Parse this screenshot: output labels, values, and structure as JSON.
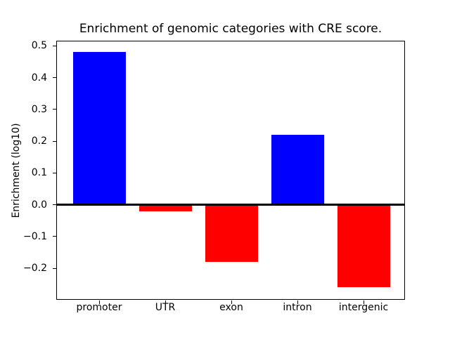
{
  "chart_data": {
    "type": "bar",
    "title": "Enrichment of genomic categories with CRE score.",
    "ylabel": "Enrichment (log10)",
    "categories": [
      "promoter",
      "UTR",
      "exon",
      "intron",
      "intergenic"
    ],
    "values": [
      0.48,
      -0.02,
      -0.18,
      0.22,
      -0.26
    ],
    "bar_colors": [
      "#0000ff",
      "#ff0000",
      "#ff0000",
      "#0000ff",
      "#ff0000"
    ],
    "positive_color": "#0000ff",
    "negative_color": "#ff0000",
    "ylim": [
      -0.3,
      0.515
    ],
    "yticks": [
      {
        "label": "0.5",
        "value": 0.5
      },
      {
        "label": "0.4",
        "value": 0.4
      },
      {
        "label": "0.3",
        "value": 0.3
      },
      {
        "label": "0.2",
        "value": 0.2
      },
      {
        "label": "0.1",
        "value": 0.1
      },
      {
        "label": "0.0",
        "value": 0.0
      },
      {
        "label": "−0.1",
        "value": -0.1
      },
      {
        "label": "−0.2",
        "value": -0.2
      }
    ],
    "grid": false,
    "legend": null,
    "zero_line": true
  }
}
